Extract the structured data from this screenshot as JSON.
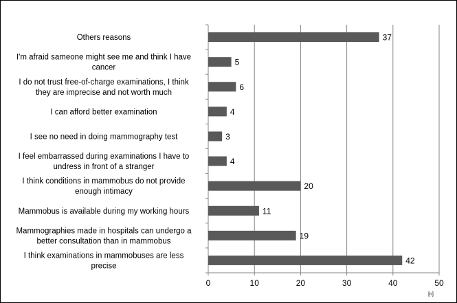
{
  "chart_data": {
    "type": "bar",
    "orientation": "horizontal",
    "categories": [
      "Others reasons",
      "I'm afraid sameone might see me and think I have cancer",
      "I do not trust free-of-charge examinations, I think they are imprecise and not worth much",
      "I can afford better examination",
      "I see no need in doing mammography test",
      "I feel embarrassed during examinations I have to undress in front of a stranger",
      "I think conditions in mammobus do not provide enough intimacy",
      "Mammobus is available during my working hours",
      "Mammographies made in hospitals can undergo a better consultation than in mammobus",
      "I think examinations in mammobuses are less precise"
    ],
    "category_lines": [
      [
        "Others reasons"
      ],
      [
        "I'm afraid sameone might see me and think I have",
        "cancer"
      ],
      [
        "I do not trust free-of-charge examinations, I think",
        "they are imprecise and not worth much"
      ],
      [
        "I can afford better examination"
      ],
      [
        "I see no need in doing mammography test"
      ],
      [
        "I feel embarrassed during examinations I have to",
        "undress in front of a stranger"
      ],
      [
        "I think conditions in mammobus do not provide",
        "enough intimacy"
      ],
      [
        "Mammobus is available during my working hours"
      ],
      [
        "Mammographies made in hospitals can undergo a",
        "better consultation than in mammobus"
      ],
      [
        "I think examinations in mammobuses are less",
        "precise"
      ]
    ],
    "values": [
      37,
      5,
      6,
      4,
      3,
      4,
      20,
      11,
      19,
      42
    ],
    "xlim": [
      0,
      50
    ],
    "xticks": [
      0,
      10,
      20,
      30,
      40,
      50
    ],
    "xlabel": "[n]",
    "ylabel": "",
    "title": "",
    "grid": true,
    "bar_color": "#595959",
    "grid_color": "#868686",
    "axis_color": "#868686"
  }
}
